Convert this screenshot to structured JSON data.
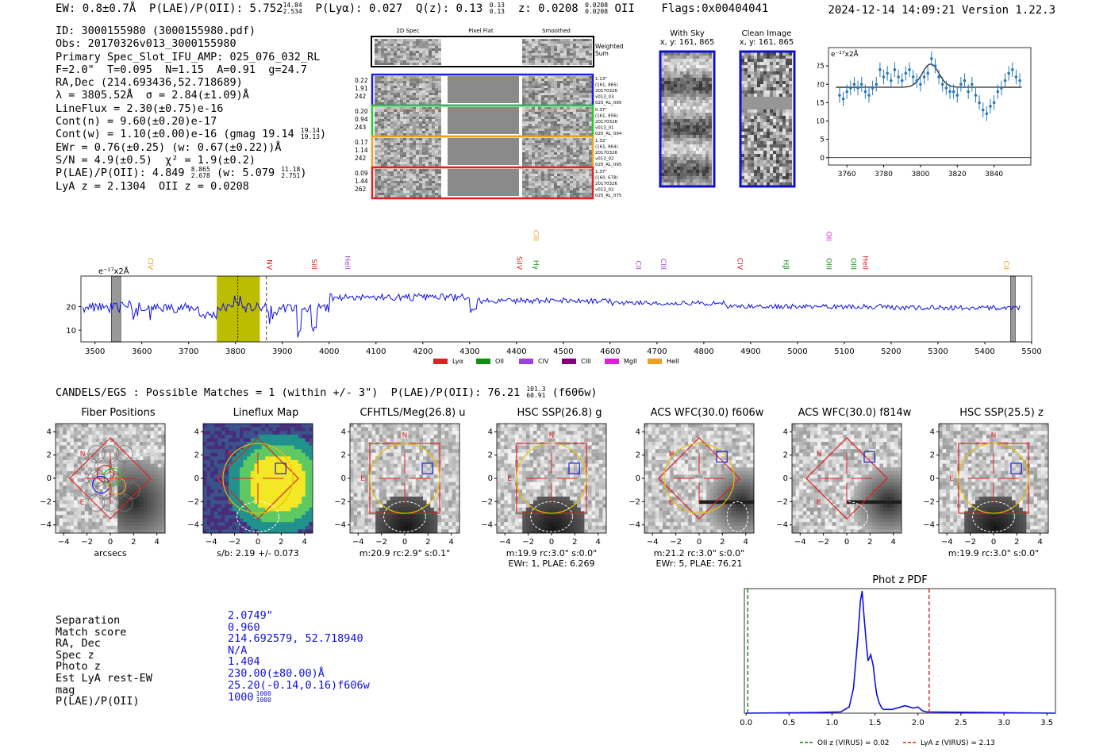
{
  "header": {
    "ew": "EW: 0.8±0.7Å",
    "plae_label": "P(LAE)/P(OII): 5.752",
    "plae_hi": "14.84",
    "plae_lo": "2.534",
    "plya": "P(Lyα): 0.027",
    "qz_label": "Q(z): 0.13",
    "qz_hi": "0.13",
    "qz_lo": "0.13",
    "z_label": "z: 0.0208",
    "z_hi": "0.0208",
    "z_lo": "0.0208",
    "z_line": "OII",
    "flags": "Flags:0x00404041",
    "timestamp": "2024-12-14 14:09:21  Version 1.22.3"
  },
  "info": {
    "id": "ID: 3000155980 (3000155980.pdf)",
    "obs": "Obs: 20170326v013_3000155980",
    "primary": "Primary Spec_Slot_IFU_AMP: 025_076_032_RL",
    "fparams": "F=2.0\"  T=0.095  N=1.15  A=0.91  g=24.7",
    "radec": "RA,Dec (214.693436,52.718689)",
    "lambda": "λ = 3805.52Å  σ = 2.84(±1.09)Å",
    "lineflux": "LineFlux = 2.30(±0.75)e-16",
    "contn": "Cont(n) = 9.60(±0.20)e-17",
    "contw": "Cont(w) = 1.10(±0.00)e-16 (gmag 19.14",
    "contw_hi": "19.14",
    "contw_lo": "19.13",
    "contw_end": ")",
    "ewr": "EWr = 0.76(±0.25) (w: 0.67(±0.22))Å",
    "sn": "S/N = 4.9(±0.5)  χ² = 1.9(±0.2)",
    "plae": "P(LAE)/P(OII): 4.849",
    "plae_hi": "8.865",
    "plae_lo": "2.678",
    "plae_w": "(w: 5.079",
    "plae_w_hi": "11.18",
    "plae_w_lo": "2.751",
    "plae_w_end": ")",
    "lyaz": "LyA z = 2.1304  OII z = 0.0208"
  },
  "fibers": {
    "headers": [
      "2D Spec",
      "Pixel Flat",
      "Smoothed"
    ],
    "weighted_label": "Weighted\nSum",
    "rows": [
      {
        "left": [
          "0.22",
          "1.91",
          "242"
        ],
        "right": [
          "1.13\"",
          "(161, 865)",
          "20170326",
          "v013_03",
          "025_RL_095"
        ],
        "color": "#1c1ce0"
      },
      {
        "left": [
          "0.20",
          "0.94",
          "243"
        ],
        "right": [
          "0.37\"",
          "(161, 856)",
          "20170326",
          "v013_01",
          "025_RL_094"
        ],
        "color": "#22cc22"
      },
      {
        "left": [
          "0.17",
          "1.14",
          "242"
        ],
        "right": [
          "1.32\"",
          "(161, 864)",
          "20170326",
          "v013_02",
          "025_RL_095"
        ],
        "color": "#f0a020"
      },
      {
        "left": [
          "0.09",
          "1.44",
          "262"
        ],
        "right": [
          "1.37\"",
          "(160, 678)",
          "20170326",
          "v013_02",
          "025_RL_075"
        ],
        "color": "#e02020"
      }
    ]
  },
  "cutouts": {
    "with_sky": {
      "title": "With Sky",
      "sub": "x, y: 161, 865"
    },
    "clean": {
      "title": "Clean Image",
      "sub": "x, y: 161, 865"
    }
  },
  "zoom_chart": {
    "type": "scatter",
    "unit_label": "e⁻¹⁷x2Å",
    "xlim": [
      3750,
      3860
    ],
    "ylim": [
      -2,
      30
    ],
    "xticks": [
      3760,
      3780,
      3800,
      3820,
      3840
    ],
    "yticks": [
      0,
      5,
      10,
      15,
      20,
      25
    ],
    "x": [
      3756,
      3758,
      3760,
      3762,
      3764,
      3766,
      3768,
      3770,
      3772,
      3774,
      3776,
      3778,
      3780,
      3782,
      3784,
      3786,
      3788,
      3790,
      3792,
      3794,
      3796,
      3798,
      3800,
      3802,
      3804,
      3806,
      3808,
      3810,
      3812,
      3814,
      3816,
      3818,
      3820,
      3822,
      3824,
      3826,
      3828,
      3830,
      3832,
      3834,
      3836,
      3838,
      3840,
      3842,
      3844,
      3846,
      3848,
      3850,
      3852,
      3854
    ],
    "y": [
      17,
      16,
      18,
      19,
      20,
      19,
      20,
      18,
      17,
      19,
      20,
      24,
      22,
      23,
      21,
      24,
      22,
      21,
      23,
      24,
      22,
      21,
      20,
      22,
      23,
      27,
      25,
      22,
      20,
      19,
      18,
      18,
      17,
      20,
      21,
      18,
      20,
      17,
      15,
      13,
      12,
      14,
      15,
      18,
      19,
      21,
      23,
      24,
      22,
      21
    ],
    "fit_baseline": 19.2,
    "fit_peak": 25.5,
    "fit_center": 3805.5,
    "fit_sigma": 2.84
  },
  "full_chart": {
    "type": "line",
    "unit_label": "e⁻¹⁷x2Å",
    "xlim": [
      3470,
      5500
    ],
    "ylim": [
      5,
      33
    ],
    "xticks": [
      3500,
      3600,
      3700,
      3800,
      3900,
      4000,
      4100,
      4200,
      4300,
      4400,
      4500,
      4600,
      4700,
      4800,
      4900,
      5000,
      5100,
      5200,
      5300,
      5400,
      5500
    ],
    "yticks": [
      10,
      20
    ],
    "highlight": [
      3760,
      3852
    ],
    "center_line": 3805,
    "dashed_line": 3866,
    "masked": [
      [
        3535,
        3555
      ],
      [
        5455,
        5465
      ]
    ],
    "line_labels": [
      {
        "name": "CIV",
        "x": 3608,
        "color": "#f0a020",
        "level": 0
      },
      {
        "name": "NV",
        "x": 3862,
        "color": "#e02020",
        "level": 0
      },
      {
        "name": "SiII",
        "x": 3958,
        "color": "#e02020",
        "level": 0
      },
      {
        "name": "HeII",
        "x": 4029,
        "color": "#a040e0",
        "level": 0
      },
      {
        "name": "SiIV",
        "x": 4396,
        "color": "#e02020",
        "level": 0
      },
      {
        "name": "Hγ",
        "x": 4432,
        "color": "#109010",
        "level": 0
      },
      {
        "name": "CIII",
        "x": 4432,
        "color": "#f0a020",
        "level": 1
      },
      {
        "name": "CII",
        "x": 4650,
        "color": "#a040e0",
        "level": 0
      },
      {
        "name": "CIII",
        "x": 4704,
        "color": "#a040e0",
        "level": 0
      },
      {
        "name": "CIV",
        "x": 4867,
        "color": "#e02020",
        "level": 0
      },
      {
        "name": "Hβ",
        "x": 4965,
        "color": "#109010",
        "level": 0
      },
      {
        "name": "OIII",
        "x": 5057,
        "color": "#109010",
        "level": 0
      },
      {
        "name": "OII",
        "x": 5057,
        "color": "#e020e0",
        "level": 1
      },
      {
        "name": "OIII",
        "x": 5109,
        "color": "#109010",
        "level": 0
      },
      {
        "name": "HeII",
        "x": 5135,
        "color": "#e02020",
        "level": 0
      },
      {
        "name": "CII",
        "x": 5436,
        "color": "#f0a020",
        "level": 0
      }
    ],
    "legend": [
      {
        "name": "Lyα",
        "color": "#e02020"
      },
      {
        "name": "OII",
        "color": "#109010"
      },
      {
        "name": "CIV",
        "color": "#a040e0"
      },
      {
        "name": "CIII",
        "color": "#800080"
      },
      {
        "name": "MgII",
        "color": "#e020e0"
      },
      {
        "name": "HeII",
        "color": "#f0a020"
      }
    ]
  },
  "candels": {
    "line": "CANDELS/EGS : Possible Matches = 1 (within +/- 3\")  P(LAE)/P(OII): 76.21",
    "hi": "101.3",
    "lo": "60.91",
    "end": "(f606w)"
  },
  "image_panels": [
    {
      "title": "Fiber Positions",
      "foot1": "arcsecs",
      "foot2": "",
      "style": "fiber"
    },
    {
      "title": "Lineflux Map",
      "foot1": "s/b: 2.19 +/- 0.073",
      "foot2": "",
      "style": "lineflux"
    },
    {
      "title": "CFHTLS/Meg(26.8) u",
      "foot1": "m:20.9 rc:2.9\"  s:0.1\"",
      "foot2": "",
      "style": "ground"
    },
    {
      "title": "HSC SSP(26.8) g",
      "foot1": "m:19.9 rc:3.0\"  s:0.0\"",
      "foot2": "EWr: 1, PLAE: 6.269",
      "style": "ground"
    },
    {
      "title": "ACS WFC(30.0) f606w",
      "foot1": "m:21.2 rc:3.0\"  s:0.0\"",
      "foot2": "EWr: 5, PLAE: 76.21",
      "style": "hst"
    },
    {
      "title": "ACS WFC(30.0) f814w",
      "foot1": "",
      "foot2": "",
      "style": "hst2"
    },
    {
      "title": "HSC SSP(25.5) z",
      "foot1": "m:19.9 rc:3.0\"  s:0.0\"",
      "foot2": "",
      "style": "ground"
    }
  ],
  "match": {
    "labels": [
      "Separation",
      "Match score",
      "RA, Dec",
      "Spec z",
      "Photo z",
      "Est LyA rest-EW",
      "mag",
      "P(LAE)/P(OII)"
    ],
    "values": [
      "2.0749\"",
      "0.960",
      "214.692579, 52.718940",
      "N/A",
      "1.404",
      "230.00(±80.00)Å",
      "25.20(-0.14,0.16)f606w",
      "1000"
    ],
    "plae_hi": "1000",
    "plae_lo": "1000"
  },
  "pdf_chart": {
    "type": "line",
    "title": "Phot z PDF",
    "xlim": [
      -0.02,
      3.6
    ],
    "ylim": [
      0,
      1.0
    ],
    "xticks": [
      0.0,
      0.5,
      1.0,
      1.5,
      2.0,
      2.5,
      3.0,
      3.5
    ],
    "x": [
      0,
      0.8,
      1.1,
      1.2,
      1.25,
      1.3,
      1.33,
      1.35,
      1.37,
      1.4,
      1.42,
      1.45,
      1.48,
      1.5,
      1.52,
      1.55,
      1.58,
      1.6,
      1.7,
      1.8,
      1.85,
      1.9,
      1.95,
      2.0,
      2.05,
      2.1,
      3.6
    ],
    "y": [
      0,
      0.005,
      0.01,
      0.05,
      0.2,
      0.6,
      0.9,
      0.98,
      0.8,
      0.55,
      0.42,
      0.47,
      0.38,
      0.25,
      0.15,
      0.08,
      0.04,
      0.03,
      0.03,
      0.05,
      0.06,
      0.05,
      0.04,
      0.05,
      0.02,
      0.01,
      0.0
    ],
    "vlines": [
      {
        "x": 0.02,
        "color": "#108010",
        "label": "OII z (VIRUS) = 0.02"
      },
      {
        "x": 2.13,
        "color": "#e02020",
        "label": "LyA z (VIRUS) = 2.13"
      }
    ]
  }
}
